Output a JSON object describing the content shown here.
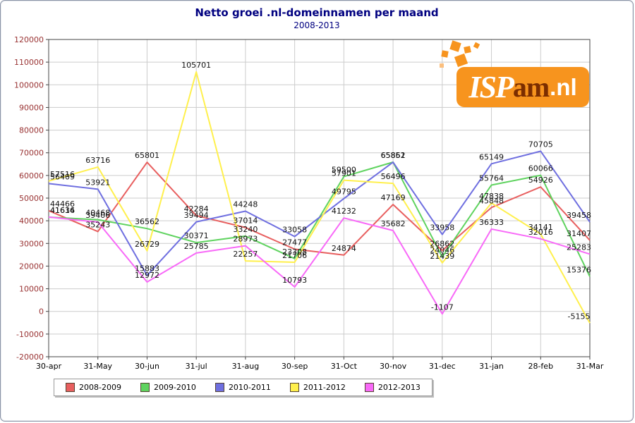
{
  "title": "Netto groei .nl-domeinnamen per maand",
  "subtitle": "2008-2013",
  "logo": {
    "isp": "ISP",
    "am": "am",
    "nl": ".nl"
  },
  "colors": {
    "title": "#000080",
    "y_tick_labels": "#993333",
    "x_tick_labels": "#000000",
    "grid": "#cccccc",
    "plot_border": "#444444",
    "point_labels": "#111111",
    "logo_orange": "#F7941E",
    "logo_dark": "#7B2D00"
  },
  "chart_data": {
    "type": "line",
    "title": "Netto groei .nl-domeinnamen per maand",
    "subtitle": "2008-2013",
    "categories": [
      "30-apr",
      "31-May",
      "30-jun",
      "31-jul",
      "31-aug",
      "30-sep",
      "31-Oct",
      "30-nov",
      "31-dec",
      "31-jan",
      "28-feb",
      "31-Mar"
    ],
    "series": [
      {
        "name": "2008-2009",
        "color": "#E85F5F",
        "values": [
          44466,
          35243,
          65801,
          42284,
          37014,
          27477,
          24874,
          47169,
          26862,
          45848,
          54926,
          31407
        ]
      },
      {
        "name": "2009-2010",
        "color": "#5FD35F",
        "values": [
          41614,
          40468,
          36562,
          30371,
          33240,
          23308,
          59500,
          65862,
          24046,
          55764,
          60066,
          15376
        ]
      },
      {
        "name": "2010-2011",
        "color": "#6F6FE0",
        "values": [
          56409,
          53921,
          15883,
          39494,
          44248,
          33058,
          49795,
          65851,
          33958,
          65149,
          70705,
          39458
        ]
      },
      {
        "name": "2011-2012",
        "color": "#FFF04D",
        "values": [
          57516,
          63716,
          26729,
          105701,
          22257,
          21706,
          57901,
          56496,
          21439,
          47838,
          34141,
          -5155
        ]
      },
      {
        "name": "2012-2013",
        "color": "#F869F8",
        "values": [
          41636,
          39406,
          12972,
          25785,
          28973,
          10793,
          41232,
          35682,
          -1107,
          36333,
          32016,
          25283
        ]
      }
    ],
    "ylim": [
      -20000,
      120000
    ],
    "ytick_step": 10000,
    "grid": true,
    "legend_position": "bottom",
    "point_labels_shown": true
  }
}
